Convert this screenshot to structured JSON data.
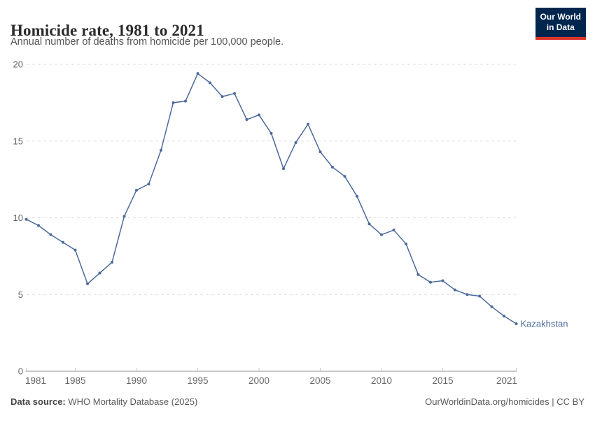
{
  "header": {
    "title": "Homicide rate, 1981 to 2021",
    "subtitle": "Annual number of deaths from homicide per 100,000 people.",
    "logo": {
      "line1": "Our World",
      "line2": "in Data"
    }
  },
  "chart_data": {
    "type": "line",
    "title": "Homicide rate, 1981 to 2021",
    "subtitle": "Annual number of deaths from homicide per 100,000 people.",
    "xlabel": "",
    "ylabel": "",
    "xlim": [
      1981,
      2021
    ],
    "ylim": [
      0,
      20
    ],
    "xticks": [
      1981,
      1985,
      1990,
      1995,
      2000,
      2005,
      2010,
      2015,
      2021
    ],
    "yticks": [
      0,
      5,
      10,
      15,
      20
    ],
    "grid": "horizontal-dashed",
    "legend_position": "end-of-line-label",
    "series": [
      {
        "name": "Kazakhstan",
        "color": "#4C6A9C",
        "x": [
          1981,
          1982,
          1983,
          1984,
          1985,
          1986,
          1987,
          1988,
          1989,
          1990,
          1991,
          1992,
          1993,
          1994,
          1995,
          1996,
          1997,
          1998,
          1999,
          2000,
          2001,
          2002,
          2003,
          2004,
          2005,
          2006,
          2007,
          2008,
          2009,
          2010,
          2011,
          2012,
          2013,
          2014,
          2015,
          2016,
          2017,
          2018,
          2019,
          2020,
          2021
        ],
        "values": [
          9.9,
          9.5,
          8.9,
          8.4,
          7.9,
          5.7,
          6.4,
          7.1,
          10.1,
          11.8,
          12.2,
          14.4,
          17.5,
          17.6,
          19.4,
          18.8,
          17.9,
          18.1,
          16.4,
          16.7,
          15.5,
          13.2,
          14.9,
          16.1,
          14.3,
          13.3,
          12.7,
          11.4,
          9.6,
          8.9,
          9.2,
          8.3,
          6.3,
          5.8,
          5.9,
          5.3,
          5.0,
          4.9,
          4.2,
          3.6,
          3.1
        ]
      }
    ],
    "end_label": "Kazakhstan"
  },
  "footer": {
    "source_label": "Data source:",
    "source_text": " WHO Mortality Database (2025)",
    "credit": "OurWorldinData.org/homicides | CC BY"
  },
  "colors": {
    "line": "#4C6A9C",
    "grid": "#dcdcdc",
    "axis": "#8f8f8f",
    "tick_label": "#666666",
    "title": "#2b2b2b",
    "subtitle": "#555555",
    "logo_bg": "#00264e",
    "logo_accent": "#dc352c"
  }
}
